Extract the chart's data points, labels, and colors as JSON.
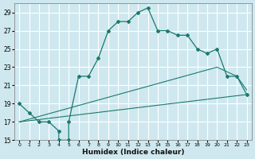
{
  "xlabel": "Humidex (Indice chaleur)",
  "xlim": [
    0,
    23
  ],
  "ylim": [
    15,
    30
  ],
  "yticks": [
    15,
    17,
    19,
    21,
    23,
    25,
    27,
    29
  ],
  "xticks": [
    0,
    1,
    2,
    3,
    4,
    5,
    6,
    7,
    8,
    9,
    10,
    11,
    12,
    13,
    14,
    15,
    16,
    17,
    18,
    19,
    20,
    21,
    22,
    23
  ],
  "bg_color": "#cfe8ef",
  "line_color": "#1a7a6e",
  "grid_color": "#ffffff",
  "curve_x": [
    0,
    1,
    2,
    3,
    4,
    4,
    5,
    5,
    6,
    7,
    8,
    9,
    10,
    11,
    12,
    13,
    14,
    15,
    16,
    17,
    18,
    19,
    20,
    21,
    22,
    23
  ],
  "curve_y": [
    19,
    18,
    17,
    17,
    16,
    15,
    15,
    17,
    22,
    22,
    24,
    27,
    28,
    28,
    29,
    29.5,
    27,
    27,
    26.5,
    26.5,
    25,
    24.5,
    25,
    22,
    22,
    20
  ],
  "line2_x": [
    0,
    23
  ],
  "line2_y": [
    17,
    20
  ],
  "line3_x": [
    0,
    20,
    21,
    22,
    23
  ],
  "line3_y": [
    17,
    23,
    22.5,
    22,
    20.5
  ]
}
